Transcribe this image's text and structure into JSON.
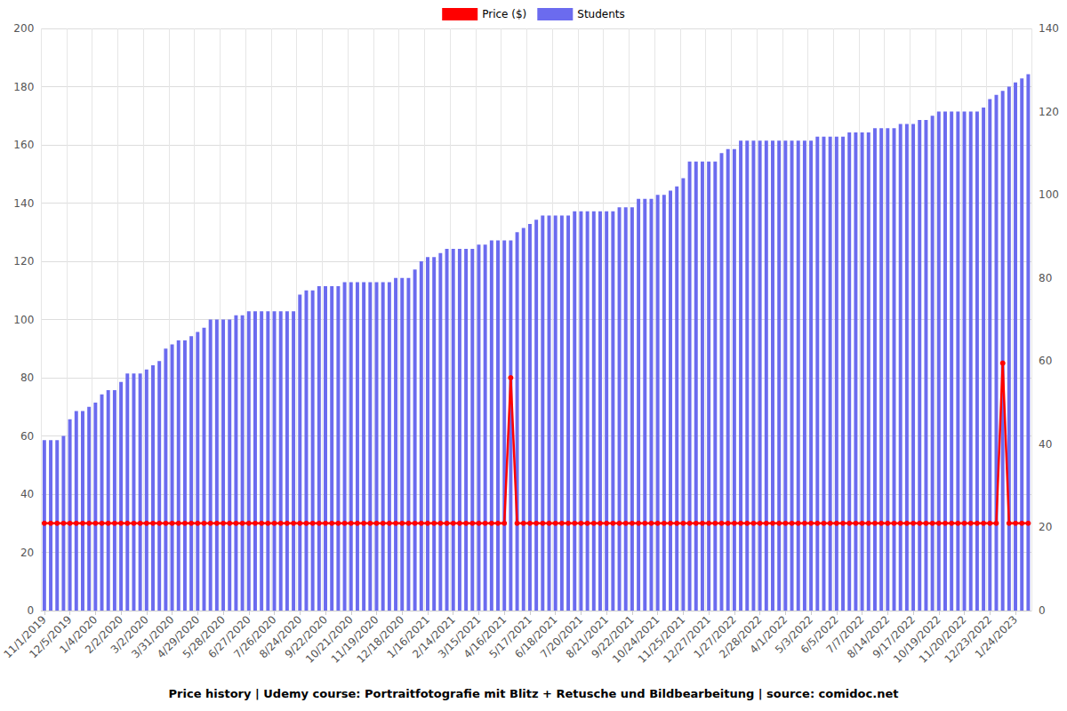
{
  "chart_data": {
    "type": "bar",
    "title": "Price history | Udemy course: Portraitfotografie mit Blitz + Retusche und Bildbearbeitung | source: comidoc.net",
    "categories": [
      "11/1/2019",
      null,
      null,
      null,
      "12/5/2019",
      null,
      null,
      null,
      "1/4/2020",
      null,
      null,
      null,
      "2/2/2020",
      null,
      null,
      null,
      "3/2/2020",
      null,
      null,
      null,
      "3/31/2020",
      null,
      null,
      null,
      "4/29/2020",
      null,
      null,
      null,
      "5/28/2020",
      null,
      null,
      null,
      "6/27/2020",
      null,
      null,
      null,
      "7/26/2020",
      null,
      null,
      null,
      "8/24/2020",
      null,
      null,
      null,
      "9/22/2020",
      null,
      null,
      null,
      "10/21/2020",
      null,
      null,
      null,
      "11/19/2020",
      null,
      null,
      null,
      "12/18/2020",
      null,
      null,
      null,
      "1/16/2021",
      null,
      null,
      null,
      "2/14/2021",
      null,
      null,
      null,
      "3/15/2021",
      null,
      null,
      null,
      "4/16/2021",
      null,
      null,
      null,
      "5/17/2021",
      null,
      null,
      null,
      "6/18/2021",
      null,
      null,
      null,
      "7/20/2021",
      null,
      null,
      null,
      "8/21/2021",
      null,
      null,
      null,
      "9/22/2021",
      null,
      null,
      null,
      "10/24/2021",
      null,
      null,
      null,
      "11/25/2021",
      null,
      null,
      null,
      "12/27/2021",
      null,
      null,
      null,
      "1/27/2022",
      null,
      null,
      null,
      "2/28/2022",
      null,
      null,
      null,
      "4/1/2022",
      null,
      null,
      null,
      "5/3/2022",
      null,
      null,
      null,
      "6/5/2022",
      null,
      null,
      null,
      "7/7/2022",
      null,
      null,
      null,
      "8/14/2022",
      null,
      null,
      null,
      "9/17/2022",
      null,
      null,
      null,
      "10/19/2022",
      null,
      null,
      null,
      "11/20/2022",
      null,
      null,
      null,
      "12/23/2022",
      null,
      null,
      null,
      "1/24/2023",
      null,
      null
    ],
    "series": [
      {
        "name": "Price ($)",
        "type": "line",
        "color": "#ff0000",
        "marker": "circle",
        "values": [
          30,
          30,
          30,
          30,
          30,
          30,
          30,
          30,
          30,
          30,
          30,
          30,
          30,
          30,
          30,
          30,
          30,
          30,
          30,
          30,
          30,
          30,
          30,
          30,
          30,
          30,
          30,
          30,
          30,
          30,
          30,
          30,
          30,
          30,
          30,
          30,
          30,
          30,
          30,
          30,
          30,
          30,
          30,
          30,
          30,
          30,
          30,
          30,
          30,
          30,
          30,
          30,
          30,
          30,
          30,
          30,
          30,
          30,
          30,
          30,
          30,
          30,
          30,
          30,
          30,
          30,
          30,
          30,
          30,
          30,
          30,
          30,
          30,
          80,
          30,
          30,
          30,
          30,
          30,
          30,
          30,
          30,
          30,
          30,
          30,
          30,
          30,
          30,
          30,
          30,
          30,
          30,
          30,
          30,
          30,
          30,
          30,
          30,
          30,
          30,
          30,
          30,
          30,
          30,
          30,
          30,
          30,
          30,
          30,
          30,
          30,
          30,
          30,
          30,
          30,
          30,
          30,
          30,
          30,
          30,
          30,
          30,
          30,
          30,
          30,
          30,
          30,
          30,
          30,
          30,
          30,
          30,
          30,
          30,
          30,
          30,
          30,
          30,
          30,
          30,
          30,
          30,
          30,
          30,
          30,
          30,
          30,
          30,
          30,
          30,
          85,
          30,
          30,
          30,
          30
        ]
      },
      {
        "name": "Students",
        "type": "bar",
        "color": "#6b6bef",
        "axis": "y2",
        "values": [
          41,
          41,
          41,
          42,
          46,
          48,
          48,
          49,
          50,
          52,
          53,
          53,
          55,
          57,
          57,
          57,
          58,
          59,
          60,
          63,
          64,
          65,
          65,
          66,
          67,
          68,
          70,
          70,
          70,
          70,
          71,
          71,
          72,
          72,
          72,
          72,
          72,
          72,
          72,
          72,
          76,
          77,
          77,
          78,
          78,
          78,
          78,
          79,
          79,
          79,
          79,
          79,
          79,
          79,
          79,
          80,
          80,
          80,
          82,
          84,
          85,
          85,
          86,
          87,
          87,
          87,
          87,
          87,
          88,
          88,
          89,
          89,
          89,
          89,
          91,
          92,
          93,
          94,
          95,
          95,
          95,
          95,
          95,
          96,
          96,
          96,
          96,
          96,
          96,
          96,
          97,
          97,
          97,
          99,
          99,
          99,
          100,
          100,
          101,
          102,
          104,
          108,
          108,
          108,
          108,
          108,
          110,
          111,
          111,
          113,
          113,
          113,
          113,
          113,
          113,
          113,
          113,
          113,
          113,
          113,
          113,
          114,
          114,
          114,
          114,
          114,
          115,
          115,
          115,
          115,
          116,
          116,
          116,
          116,
          117,
          117,
          117,
          118,
          118,
          119,
          120,
          120,
          120,
          120,
          120,
          120,
          120,
          121,
          123,
          124,
          125,
          126,
          127,
          128,
          129
        ]
      }
    ],
    "ylim": [
      0,
      200
    ],
    "yticks": [
      0,
      20,
      40,
      60,
      80,
      100,
      120,
      140,
      160,
      180,
      200
    ],
    "y2lim": [
      0,
      140
    ],
    "y2ticks": [
      0,
      20,
      40,
      60,
      80,
      100,
      120,
      140
    ],
    "grid": true,
    "legend": "top"
  }
}
